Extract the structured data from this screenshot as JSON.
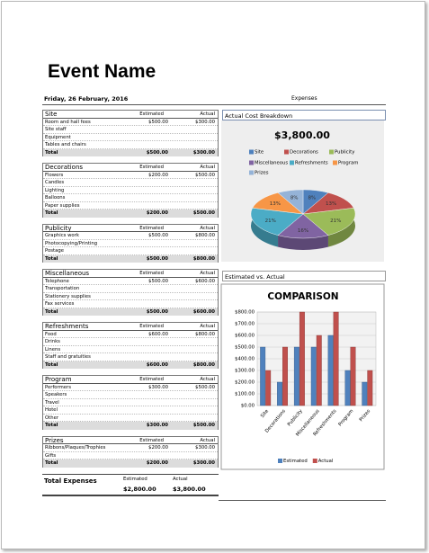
{
  "header": {
    "title": "Event Name",
    "date": "Friday, 26 February, 2016",
    "expenses_label": "Expenses"
  },
  "sections": [
    {
      "name": "Site",
      "columns": [
        "Estimated",
        "Actual"
      ],
      "rows": [
        [
          "Room and hall fees",
          "$500.00",
          "$300.00"
        ],
        [
          "Site staff"
        ],
        [
          "Equipment"
        ],
        [
          "Tables and chairs"
        ]
      ],
      "total": [
        "Total",
        "$500.00",
        "$300.00"
      ]
    },
    {
      "name": "Decorations",
      "columns": [
        "Estimated",
        "Actual"
      ],
      "rows": [
        [
          "Flowers",
          "$200.00",
          "$500.00"
        ],
        [
          "Candles"
        ],
        [
          "Lighting"
        ],
        [
          "Balloons"
        ],
        [
          "Paper supplies"
        ]
      ],
      "total": [
        "Total",
        "$200.00",
        "$500.00"
      ]
    },
    {
      "name": "Publicity",
      "columns": [
        "Estimated",
        "Actual"
      ],
      "rows": [
        [
          "Graphics work",
          "$500.00",
          "$800.00"
        ],
        [
          "Photocopying/Printing"
        ],
        [
          "Postage"
        ]
      ],
      "total": [
        "Total",
        "$500.00",
        "$800.00"
      ]
    },
    {
      "name": "Miscellaneous",
      "columns": [
        "Estimated",
        "Actual"
      ],
      "rows": [
        [
          "Telephone",
          "$500.00",
          "$600.00"
        ],
        [
          "Transportation"
        ],
        [
          "Stationery supplies"
        ],
        [
          "Fax services"
        ]
      ],
      "total": [
        "Total",
        "$500.00",
        "$600.00"
      ]
    },
    {
      "name": "Refreshments",
      "columns": [
        "Estimated",
        "Actual"
      ],
      "rows": [
        [
          "Food",
          "$600.00",
          "$800.00"
        ],
        [
          "Drinks"
        ],
        [
          "Linens"
        ],
        [
          "Staff and gratuities"
        ]
      ],
      "total": [
        "Total",
        "$600.00",
        "$800.00"
      ]
    },
    {
      "name": "Program",
      "columns": [
        "Estimated",
        "Actual"
      ],
      "rows": [
        [
          "Performers",
          "$300.00",
          "$500.00"
        ],
        [
          "Speakers"
        ],
        [
          "Travel"
        ],
        [
          "Hotel"
        ],
        [
          "Other"
        ]
      ],
      "total": [
        "Total",
        "$300.00",
        "$500.00"
      ]
    },
    {
      "name": "Prizes",
      "columns": [
        "Estimated",
        "Actual"
      ],
      "rows": [
        [
          "Ribbons/Plaques/Trophies",
          "$200.00",
          "$300.00"
        ],
        [
          "Gifts"
        ]
      ],
      "total": [
        "Total",
        "$200.00",
        "$300.00"
      ]
    }
  ],
  "total_expenses": {
    "label": "Total Expenses",
    "columns": [
      "Estimated",
      "Actual"
    ],
    "values": [
      "$2,800.00",
      "$3,800.00"
    ]
  },
  "pie_chart": {
    "type": "pie",
    "panel_title": "Actual Cost Breakdown",
    "title": "$3,800.00",
    "categories": [
      "Site",
      "Decorations",
      "Publicity",
      "Miscellaneous",
      "Refreshments",
      "Program",
      "Prizes"
    ],
    "values": [
      8,
      13,
      21,
      16,
      21,
      13,
      8
    ],
    "value_labels": [
      "8%",
      "13%",
      "21%",
      "16%",
      "21%",
      "13%",
      "8%"
    ],
    "colors": [
      "#4f81bd",
      "#c0504d",
      "#9bbb59",
      "#8064a2",
      "#4bacc6",
      "#f79646",
      "#95b3d7"
    ]
  },
  "bar_chart": {
    "type": "bar",
    "panel_title": "Estimated vs. Actual",
    "title": "COMPARISON",
    "categories": [
      "Site",
      "Decorations",
      "Publicity",
      "Miscellaneous",
      "Refreshments",
      "Program",
      "Prizes"
    ],
    "series": [
      {
        "name": "Estimated",
        "color": "#4f81bd",
        "values": [
          500,
          200,
          500,
          500,
          600,
          300,
          200
        ]
      },
      {
        "name": "Actual",
        "color": "#c0504d",
        "values": [
          300,
          500,
          800,
          600,
          800,
          500,
          300
        ]
      }
    ],
    "ylim": [
      0,
      800
    ],
    "yticks": [
      {
        "value": 0,
        "label": "$0.00"
      },
      {
        "value": 100,
        "label": "$100.00"
      },
      {
        "value": 200,
        "label": "$200.00"
      },
      {
        "value": 300,
        "label": "$300.00"
      },
      {
        "value": 400,
        "label": "$400.00"
      },
      {
        "value": 500,
        "label": "$500.00"
      },
      {
        "value": 600,
        "label": "$600.00"
      },
      {
        "value": 700,
        "label": "$700.00"
      },
      {
        "value": 800,
        "label": "$800.00"
      }
    ],
    "grid": true
  }
}
